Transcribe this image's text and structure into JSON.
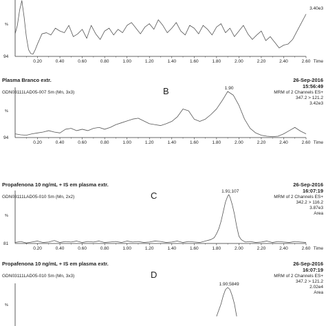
{
  "chart_data": [
    {
      "type": "line",
      "panel_letter": "",
      "title": "",
      "file_info": "",
      "date": "",
      "time": "",
      "channel_info": [
        "",
        "3.40e3"
      ],
      "peak_label": "",
      "ylabel": "%",
      "y_min_label": "94",
      "xlabel": "Time",
      "xlim": [
        0,
        2.6
      ],
      "ylim": [
        0,
        100
      ],
      "xticks": [
        "0.20",
        "0.40",
        "0.60",
        "0.80",
        "1.00",
        "1.20",
        "1.40",
        "1.60",
        "1.80",
        "2.00",
        "2.20",
        "2.40",
        "2.60"
      ],
      "x": [
        0.0,
        0.02,
        0.04,
        0.06,
        0.08,
        0.1,
        0.12,
        0.14,
        0.16,
        0.18,
        0.2,
        0.24,
        0.28,
        0.32,
        0.36,
        0.4,
        0.44,
        0.48,
        0.52,
        0.56,
        0.6,
        0.64,
        0.68,
        0.72,
        0.76,
        0.8,
        0.84,
        0.88,
        0.92,
        0.96,
        1.0,
        1.04,
        1.08,
        1.12,
        1.16,
        1.2,
        1.24,
        1.28,
        1.32,
        1.36,
        1.4,
        1.44,
        1.48,
        1.52,
        1.56,
        1.6,
        1.64,
        1.68,
        1.72,
        1.76,
        1.8,
        1.84,
        1.88,
        1.92,
        1.96,
        2.0,
        2.04,
        2.08,
        2.12,
        2.16,
        2.2,
        2.24,
        2.28,
        2.32,
        2.36,
        2.4,
        2.44,
        2.48,
        2.52,
        2.56,
        2.6
      ],
      "y": [
        40,
        55,
        82,
        99,
        70,
        35,
        12,
        5,
        4,
        12,
        22,
        40,
        42,
        38,
        50,
        45,
        42,
        55,
        35,
        40,
        48,
        32,
        55,
        40,
        30,
        45,
        50,
        38,
        48,
        42,
        55,
        60,
        50,
        40,
        52,
        58,
        48,
        65,
        55,
        42,
        50,
        60,
        45,
        38,
        55,
        50,
        40,
        55,
        48,
        38,
        52,
        58,
        42,
        50,
        35,
        45,
        55,
        40,
        30,
        38,
        45,
        28,
        35,
        25,
        15,
        20,
        22,
        30,
        45,
        60,
        75
      ]
    },
    {
      "type": "line",
      "panel_letter": "B",
      "title": "Plasma Branco extr.",
      "file_info": "GDN03111LAD05-007 Sm (Mn, 3x3)",
      "date": "26-Sep-2016",
      "time": "15:56:49",
      "channel_info": [
        "MRM of 2 Channels ES+",
        "347.2 > 121.2",
        "3.42e3"
      ],
      "peak_label": "1.90",
      "ylabel": "%",
      "y_min_label": "94",
      "xlabel": "Time",
      "xlim": [
        0,
        2.6
      ],
      "ylim": [
        0,
        100
      ],
      "xticks": [
        "0.20",
        "0.40",
        "0.60",
        "0.80",
        "1.00",
        "1.20",
        "1.40",
        "1.60",
        "1.80",
        "2.00",
        "2.20",
        "2.40",
        "2.60"
      ],
      "x": [
        0.0,
        0.05,
        0.1,
        0.15,
        0.2,
        0.25,
        0.3,
        0.35,
        0.4,
        0.45,
        0.5,
        0.55,
        0.6,
        0.65,
        0.7,
        0.75,
        0.8,
        0.85,
        0.9,
        0.95,
        1.0,
        1.05,
        1.1,
        1.15,
        1.2,
        1.25,
        1.3,
        1.35,
        1.4,
        1.45,
        1.5,
        1.55,
        1.6,
        1.65,
        1.7,
        1.75,
        1.8,
        1.85,
        1.9,
        1.95,
        2.0,
        2.05,
        2.1,
        2.15,
        2.2,
        2.25,
        2.3,
        2.35,
        2.4,
        2.45,
        2.5,
        2.55,
        2.6
      ],
      "y": [
        8,
        6,
        5,
        8,
        10,
        12,
        15,
        12,
        10,
        18,
        20,
        15,
        18,
        15,
        20,
        22,
        18,
        22,
        28,
        32,
        36,
        40,
        42,
        36,
        30,
        28,
        26,
        30,
        35,
        45,
        62,
        58,
        40,
        35,
        40,
        50,
        62,
        80,
        100,
        92,
        70,
        40,
        20,
        10,
        5,
        3,
        2,
        3,
        8,
        15,
        22,
        14,
        8
      ]
    },
    {
      "type": "line",
      "panel_letter": "C",
      "title": "Propafenona 10 ng/mL + IS em plasma extr.",
      "file_info": "GDN03111LAD05-010 Sm (Mn, 2x2)",
      "date": "26-Sep-2016",
      "time": "16:07:19",
      "channel_info": [
        "MRM of 2 Channels ES+",
        "342.2 > 116.2",
        "3.87e3",
        "Area"
      ],
      "peak_label": "1.91;107",
      "ylabel": "%",
      "y_min_label": "81",
      "xlabel": "Time",
      "xlim": [
        0,
        2.6
      ],
      "ylim": [
        0,
        100
      ],
      "xticks": [
        "0.20",
        "0.40",
        "0.60",
        "0.80",
        "1.00",
        "1.20",
        "1.40",
        "1.60",
        "1.80",
        "2.00",
        "2.20",
        "2.40",
        "2.60"
      ],
      "x": [
        0.0,
        0.05,
        0.1,
        0.15,
        0.2,
        0.25,
        0.3,
        0.35,
        0.4,
        0.45,
        0.5,
        0.55,
        0.6,
        0.65,
        0.7,
        0.75,
        0.8,
        0.85,
        0.9,
        0.95,
        1.0,
        1.05,
        1.1,
        1.15,
        1.2,
        1.25,
        1.3,
        1.35,
        1.4,
        1.45,
        1.5,
        1.55,
        1.6,
        1.65,
        1.7,
        1.75,
        1.78,
        1.8,
        1.82,
        1.84,
        1.86,
        1.88,
        1.9,
        1.91,
        1.92,
        1.94,
        1.96,
        1.98,
        2.0,
        2.02,
        2.04,
        2.06,
        2.1,
        2.15,
        2.2,
        2.25,
        2.3,
        2.35,
        2.4,
        2.45,
        2.5,
        2.55,
        2.6
      ],
      "y": [
        2,
        4,
        1,
        3,
        5,
        2,
        3,
        6,
        2,
        4,
        3,
        5,
        2,
        4,
        3,
        5,
        2,
        3,
        4,
        2,
        5,
        3,
        4,
        2,
        3,
        5,
        4,
        2,
        3,
        5,
        2,
        4,
        3,
        2,
        5,
        8,
        12,
        20,
        30,
        45,
        65,
        85,
        97,
        100,
        95,
        80,
        60,
        35,
        15,
        8,
        5,
        3,
        4,
        2,
        3,
        5,
        2,
        4,
        3,
        2,
        4,
        3,
        2
      ]
    },
    {
      "type": "line",
      "panel_letter": "D",
      "title": "Propafenona 10 ng/mL + IS em plasma extr.",
      "file_info": "GDN03111LAD05-010 Sm (Mn, 3x3)",
      "date": "26-Sep-2016",
      "time": "16:07:19",
      "channel_info": [
        "MRM of 2 Channels ES+",
        "347.2 > 121.2",
        "2.02e4",
        "Area"
      ],
      "peak_label": "1.90;5849",
      "ylabel": "%",
      "y_min_label": "",
      "xlabel": "",
      "xlim": [
        0,
        2.6
      ],
      "ylim": [
        0,
        100
      ],
      "xticks": [],
      "x": [
        1.8,
        1.84,
        1.86,
        1.88,
        1.9,
        1.92,
        1.94,
        1.96,
        1.98
      ],
      "y": [
        30,
        60,
        80,
        95,
        100,
        95,
        80,
        60,
        30
      ]
    }
  ]
}
